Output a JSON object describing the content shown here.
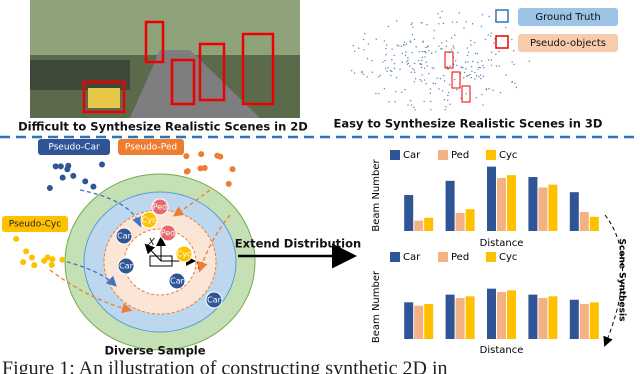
{
  "figure": {
    "left_caption": "Difficult to Synthesize Realistic Scenes in 2D",
    "right_caption": "Easy to Synthesize Realistic Scenes in 3D",
    "legend_gt": "Ground Truth",
    "legend_pseudo": "Pseudo-objects",
    "pseudo_car": "Pseudo-Car",
    "pseudo_ped": "Pseudo-Ped",
    "pseudo_cyc": "Pseudo-Cyc",
    "nodes": [
      "Car",
      "Cyc",
      "Ped",
      "Car",
      "Ped",
      "Cyc",
      "Car",
      "Car"
    ],
    "axis_x": "X",
    "axis_y": "Y",
    "axis_z": "Z",
    "diverse": "Diverse Sample",
    "extend": "Extend Distribution",
    "synthesis": "Scene Synthesis",
    "figure_caption": "Figure 1: An illustration of constructing synthetic 2D in"
  },
  "chart_data": [
    {
      "type": "bar",
      "y_label": "Beam Number",
      "x_label": "Distance",
      "categories": [
        null,
        null,
        null,
        null,
        null
      ],
      "ylim": [
        0,
        75
      ],
      "series": [
        {
          "name": "Car",
          "color": "#2f5597",
          "values": [
            38,
            53,
            68,
            57,
            41
          ]
        },
        {
          "name": "Ped",
          "color": "#f4b183",
          "values": [
            11,
            19,
            56,
            46,
            20
          ]
        },
        {
          "name": "Cyc",
          "color": "#ffc000",
          "values": [
            14,
            23,
            59,
            49,
            15
          ]
        }
      ]
    },
    {
      "type": "bar",
      "y_label": "Beam Number",
      "x_label": "Distance",
      "categories": [
        null,
        null,
        null,
        null,
        null
      ],
      "ylim": [
        0,
        75
      ],
      "series": [
        {
          "name": "Car",
          "color": "#2f5597",
          "values": [
            43,
            52,
            59,
            52,
            46
          ]
        },
        {
          "name": "Ped",
          "color": "#f4b183",
          "values": [
            39,
            48,
            55,
            48,
            41
          ]
        },
        {
          "name": "Cyc",
          "color": "#ffc000",
          "values": [
            41,
            50,
            57,
            50,
            43
          ]
        }
      ]
    }
  ]
}
